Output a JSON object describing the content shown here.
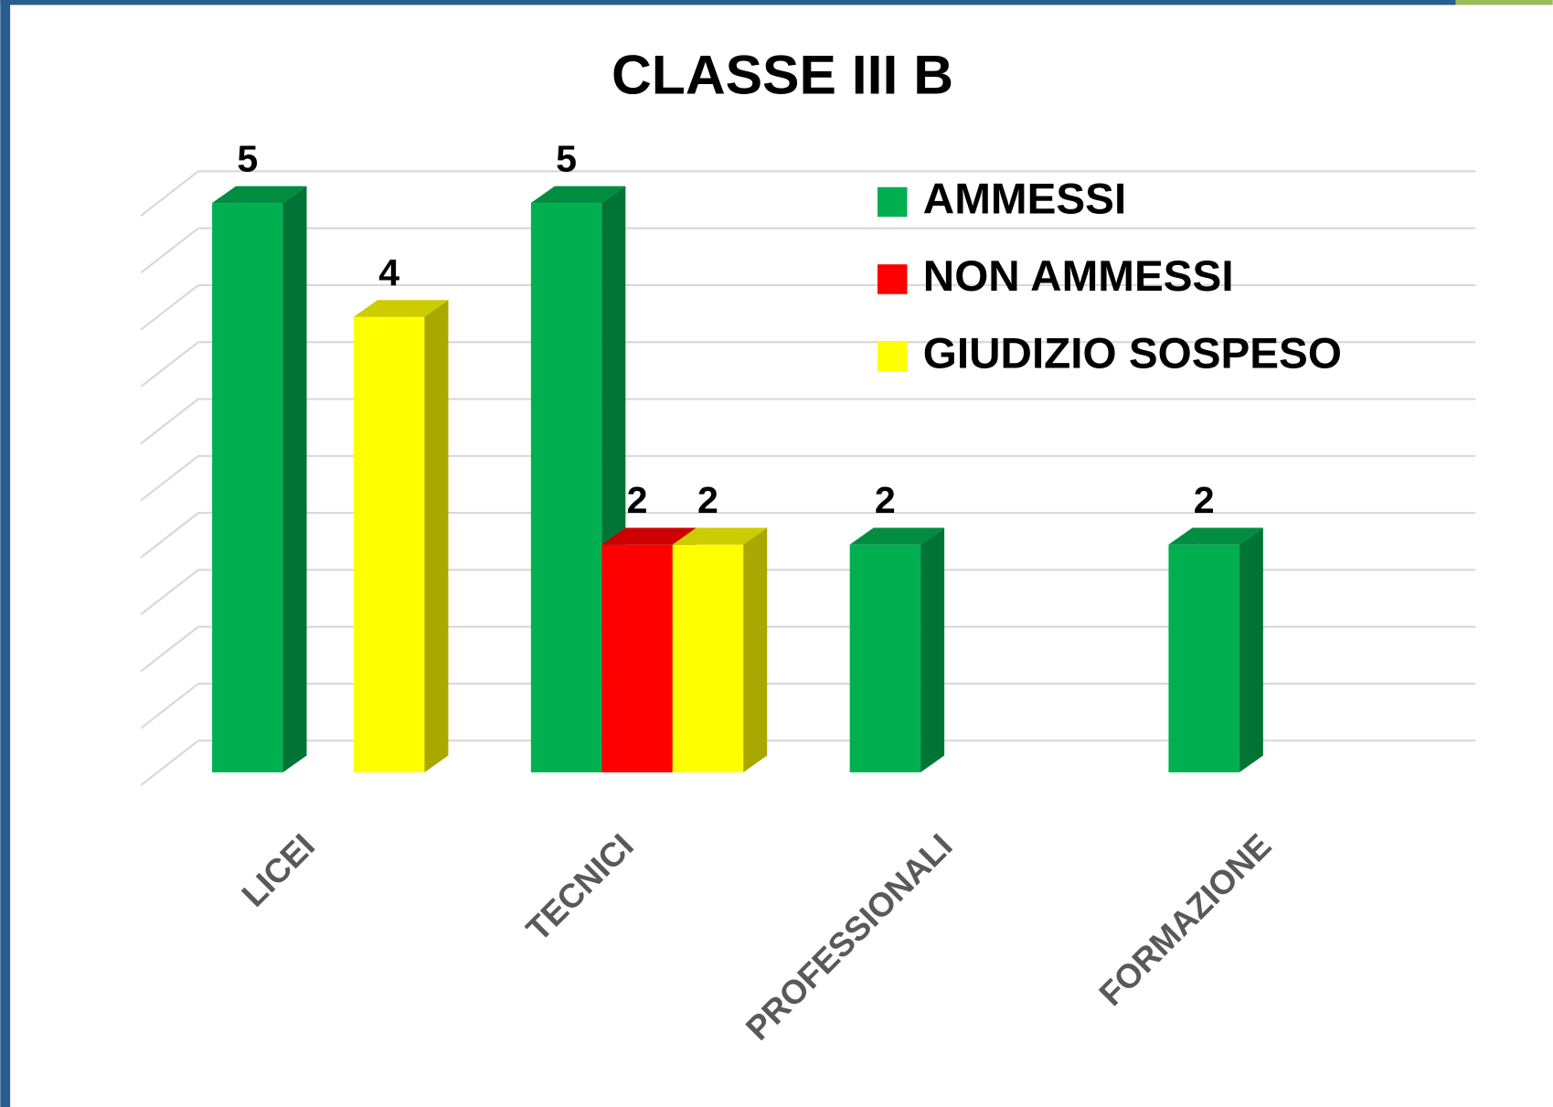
{
  "chart_data": {
    "type": "bar3d",
    "title": "CLASSE III B",
    "categories": [
      "LICEI",
      "TECNICI",
      "PROFESSIONALI",
      "FORMAZIONE"
    ],
    "series": [
      {
        "name": "AMMESSI",
        "color": "#00b050",
        "values": [
          5,
          5,
          2,
          2
        ]
      },
      {
        "name": "NON AMMESSI",
        "color": "#ff0000",
        "values": [
          null,
          2,
          null,
          null
        ]
      },
      {
        "name": "GIUDIZIO SOSPESO",
        "color": "#ffff00",
        "values": [
          4,
          2,
          null,
          null
        ]
      }
    ],
    "ylim": [
      0,
      5
    ],
    "yticks": [
      0,
      0.5,
      1,
      1.5,
      2,
      2.5,
      3,
      3.5,
      4,
      4.5,
      5
    ],
    "grid": true,
    "legend": "top-right"
  }
}
